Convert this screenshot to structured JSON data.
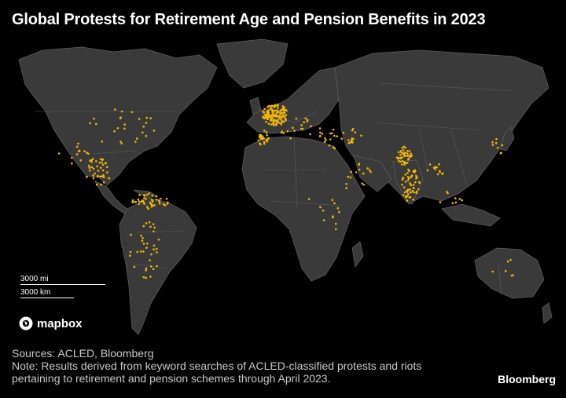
{
  "header": {
    "title": "Global Protests for Retirement Age and Pension Benefits in 2023"
  },
  "map": {
    "land_color": "#3a3a3a",
    "border_color": "#5c5c5c",
    "water_color": "#000000",
    "dot_color": "#f2b705",
    "scale": {
      "miles_label": "3000 mi",
      "km_label": "3000 km"
    },
    "attribution_logo": "mapbox"
  },
  "footer": {
    "sources": "Sources: ACLED, Bloomberg",
    "note_line1": "Note: Results derived from keyword searches of ACLED-classified protests and riots",
    "note_line2": "pertaining to retirement and pension schemes through April 2023."
  },
  "brand": "Bloomberg"
}
